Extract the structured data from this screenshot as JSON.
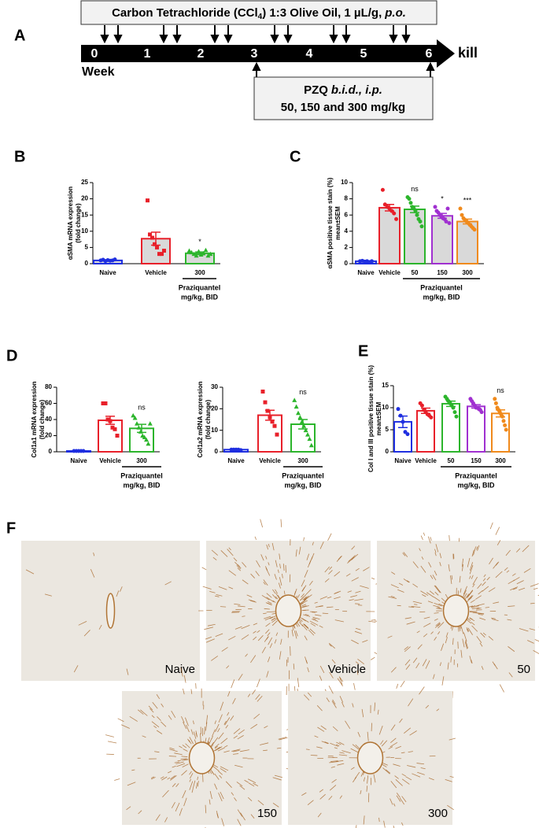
{
  "panel_a": {
    "label": "A",
    "treatment": {
      "main": "Carbon Tetrachloride (CCl",
      "subscript": "4",
      "rest": ") 1:3 Olive Oil, 1 µL/g,",
      "italic": "p.o."
    },
    "weeks": [
      0,
      1,
      2,
      3,
      4,
      5,
      6
    ],
    "week_label": "Week",
    "end_label": "kill",
    "pzq": {
      "plain": "PZQ",
      "italic": "b.i.d., i.p.",
      "doses": "50, 150 and 300 mg/kg"
    }
  },
  "chart_data": [
    {
      "type": "bar",
      "panel_label": "B",
      "ylabel": [
        "αSMA mRNA expression",
        "(fold change)"
      ],
      "categories": [
        "Naive",
        "Vehicle",
        "300"
      ],
      "values": [
        1,
        7.7,
        3.2
      ],
      "errors": [
        0.2,
        2,
        0.4
      ],
      "points": [
        [
          1,
          1.2,
          0.8,
          1.1,
          0.9,
          1.0,
          1.3
        ],
        [
          19.5,
          9,
          8,
          6,
          5,
          3,
          3,
          4
        ],
        [
          4,
          3.5,
          3,
          2.5,
          3.8,
          2.8,
          3.2,
          4.2,
          2.5,
          3
        ]
      ],
      "colors": [
        "#1f2fe0",
        "#e8202a",
        "#2cb52c"
      ],
      "markers": [
        "circle",
        "square",
        "triangle"
      ],
      "bar_fill": "#d9d9d9",
      "annotations": [
        null,
        null,
        "*"
      ],
      "group_label": [
        "Praziquantel",
        "mg/kg, BID"
      ],
      "ylim": [
        0,
        25
      ],
      "yticks": [
        0,
        5,
        10,
        15,
        20,
        25
      ]
    },
    {
      "type": "bar",
      "panel_label": "C",
      "ylabel": [
        "αSMA positive tissue stain (%)",
        "mean±SEM"
      ],
      "categories": [
        "Naive",
        "Vehicle",
        "50",
        "150",
        "300"
      ],
      "values": [
        0.3,
        6.9,
        6.7,
        5.9,
        5.2
      ],
      "errors": [
        0.05,
        0.4,
        0.4,
        0.3,
        0.3
      ],
      "points": [
        [
          0.3,
          0.35,
          0.25,
          0.3,
          0.2,
          0.3
        ],
        [
          9.1,
          7.3,
          7.0,
          6.8,
          6.5,
          6.2,
          5.5
        ],
        [
          8.2,
          8.0,
          7.5,
          7.0,
          6.8,
          6.5,
          6.0,
          5.5,
          5.2,
          4.6
        ],
        [
          7.0,
          6.5,
          6.3,
          6.0,
          5.8,
          5.6,
          5.5,
          5.2,
          6.8,
          5.0
        ],
        [
          6.8,
          6.0,
          5.6,
          5.4,
          5.2,
          5.0,
          4.8,
          4.6,
          4.4,
          4.2
        ]
      ],
      "colors": [
        "#1f2fe0",
        "#e8202a",
        "#2cb52c",
        "#a030d0",
        "#f08a1c"
      ],
      "markers": [
        "circle",
        "circle",
        "circle",
        "circle",
        "circle"
      ],
      "bar_fill": "#d9d9d9",
      "annotations": [
        null,
        null,
        "ns",
        "*",
        "***"
      ],
      "group_label": [
        "Praziquantel",
        "mg/kg, BID"
      ],
      "ylim": [
        0,
        10
      ],
      "yticks": [
        0,
        2,
        4,
        6,
        8,
        10
      ]
    },
    {
      "type": "bar",
      "panel_label": "D",
      "ylabel": [
        "Col1a1 mRNA expression",
        "(fold change)"
      ],
      "categories": [
        "Naive",
        "Vehicle",
        "300"
      ],
      "values": [
        1,
        39,
        29
      ],
      "errors": [
        0.2,
        5,
        5
      ],
      "points": [
        [
          1,
          1,
          1,
          1,
          1
        ],
        [
          60,
          60,
          40,
          38,
          30,
          28,
          20
        ],
        [
          45,
          42,
          35,
          30,
          25,
          20,
          18,
          15,
          10,
          35
        ]
      ],
      "colors": [
        "#1f2fe0",
        "#e8202a",
        "#2cb52c"
      ],
      "markers": [
        "circle",
        "square",
        "triangle"
      ],
      "bar_fill": "#ffffff",
      "annotations": [
        null,
        null,
        "ns"
      ],
      "group_label": [
        "Praziquantel",
        "mg/kg, BID"
      ],
      "ylim": [
        0,
        80
      ],
      "yticks": [
        0,
        20,
        40,
        60,
        80
      ]
    },
    {
      "type": "bar",
      "ylabel": [
        "Col1a2 mRNA expression",
        "(fold change)"
      ],
      "categories": [
        "Naive",
        "Vehicle",
        "300"
      ],
      "values": [
        1,
        17,
        12.8
      ],
      "errors": [
        0.2,
        2.3,
        2.2
      ],
      "points": [
        [
          1,
          1,
          1,
          1,
          0.8
        ],
        [
          28,
          23,
          19,
          16,
          14,
          12,
          8
        ],
        [
          24,
          21,
          18,
          16,
          14,
          12,
          10,
          8,
          6,
          3
        ]
      ],
      "colors": [
        "#1f2fe0",
        "#e8202a",
        "#2cb52c"
      ],
      "markers": [
        "circle",
        "square",
        "triangle"
      ],
      "bar_fill": "#ffffff",
      "annotations": [
        null,
        null,
        "ns"
      ],
      "group_label": [
        "Praziquantel",
        "mg/kg, BID"
      ],
      "ylim": [
        0,
        30
      ],
      "yticks": [
        0,
        10,
        20,
        30
      ]
    },
    {
      "type": "bar",
      "panel_label": "E",
      "ylabel": [
        "Col I and III positive tissue stain (%)",
        "mean±SEM"
      ],
      "categories": [
        "Naive",
        "Vehicle",
        "50",
        "150",
        "300"
      ],
      "values": [
        6.8,
        9.3,
        10.9,
        10.3,
        8.7
      ],
      "errors": [
        1.3,
        0.6,
        0.6,
        0.4,
        0.8
      ],
      "points": [
        [
          9.7,
          8.2,
          6.8,
          4.5,
          4.0
        ],
        [
          11,
          10.5,
          9.5,
          9,
          8.5,
          8.2,
          7.8
        ],
        [
          12.5,
          12,
          11.5,
          11,
          10.5,
          10,
          9,
          8
        ],
        [
          12,
          11.5,
          11,
          10.5,
          10,
          10,
          9.7,
          9.5,
          9
        ],
        [
          12,
          11,
          10,
          9.5,
          9,
          8.5,
          8,
          7,
          6,
          5
        ]
      ],
      "colors": [
        "#1f2fe0",
        "#e8202a",
        "#2cb52c",
        "#a030d0",
        "#f08a1c"
      ],
      "markers": [
        "circle",
        "circle",
        "circle",
        "circle",
        "circle"
      ],
      "bar_fill": "#ffffff",
      "annotations": [
        null,
        null,
        null,
        null,
        "ns"
      ],
      "group_label": [
        "Praziquantel",
        "mg/kg, BID"
      ],
      "ylim": [
        0,
        15
      ],
      "yticks": [
        0,
        5,
        10,
        15
      ]
    }
  ],
  "panel_f": {
    "label": "F",
    "images": [
      {
        "label": "Naive"
      },
      {
        "label": "Vehicle"
      },
      {
        "label": "50"
      },
      {
        "label": "150"
      },
      {
        "label": "300"
      }
    ]
  }
}
